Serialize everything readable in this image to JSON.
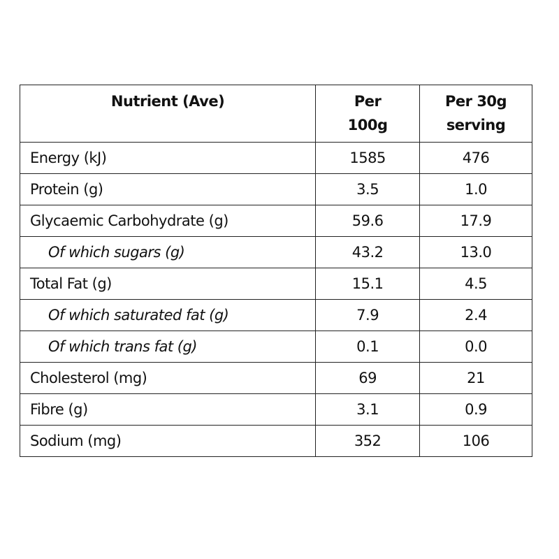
{
  "table": {
    "headers": [
      "Nutrient (Ave)",
      "Per 100g",
      "Per 30g serving"
    ],
    "rows": [
      [
        "Energy (kJ)",
        "1585",
        "476"
      ],
      [
        "Protein (g)",
        "3.5",
        "1.0"
      ],
      [
        "Glycaemic Carbohydrate (g)",
        "59.6",
        "17.9"
      ],
      [
        "Of which sugars (g)",
        "43.2",
        "13.0"
      ],
      [
        "Total Fat (g)",
        "15.1",
        "4.5"
      ],
      [
        "Of which saturated fat (g)",
        "7.9",
        "2.4"
      ],
      [
        "Of which trans fat (g)",
        "0.1",
        "0.0"
      ],
      [
        "Cholesterol (mg)",
        "69",
        "21"
      ],
      [
        "Fibre (g)",
        "3.1",
        "0.9"
      ],
      [
        "Sodium (mg)",
        "352",
        "106"
      ]
    ]
  }
}
